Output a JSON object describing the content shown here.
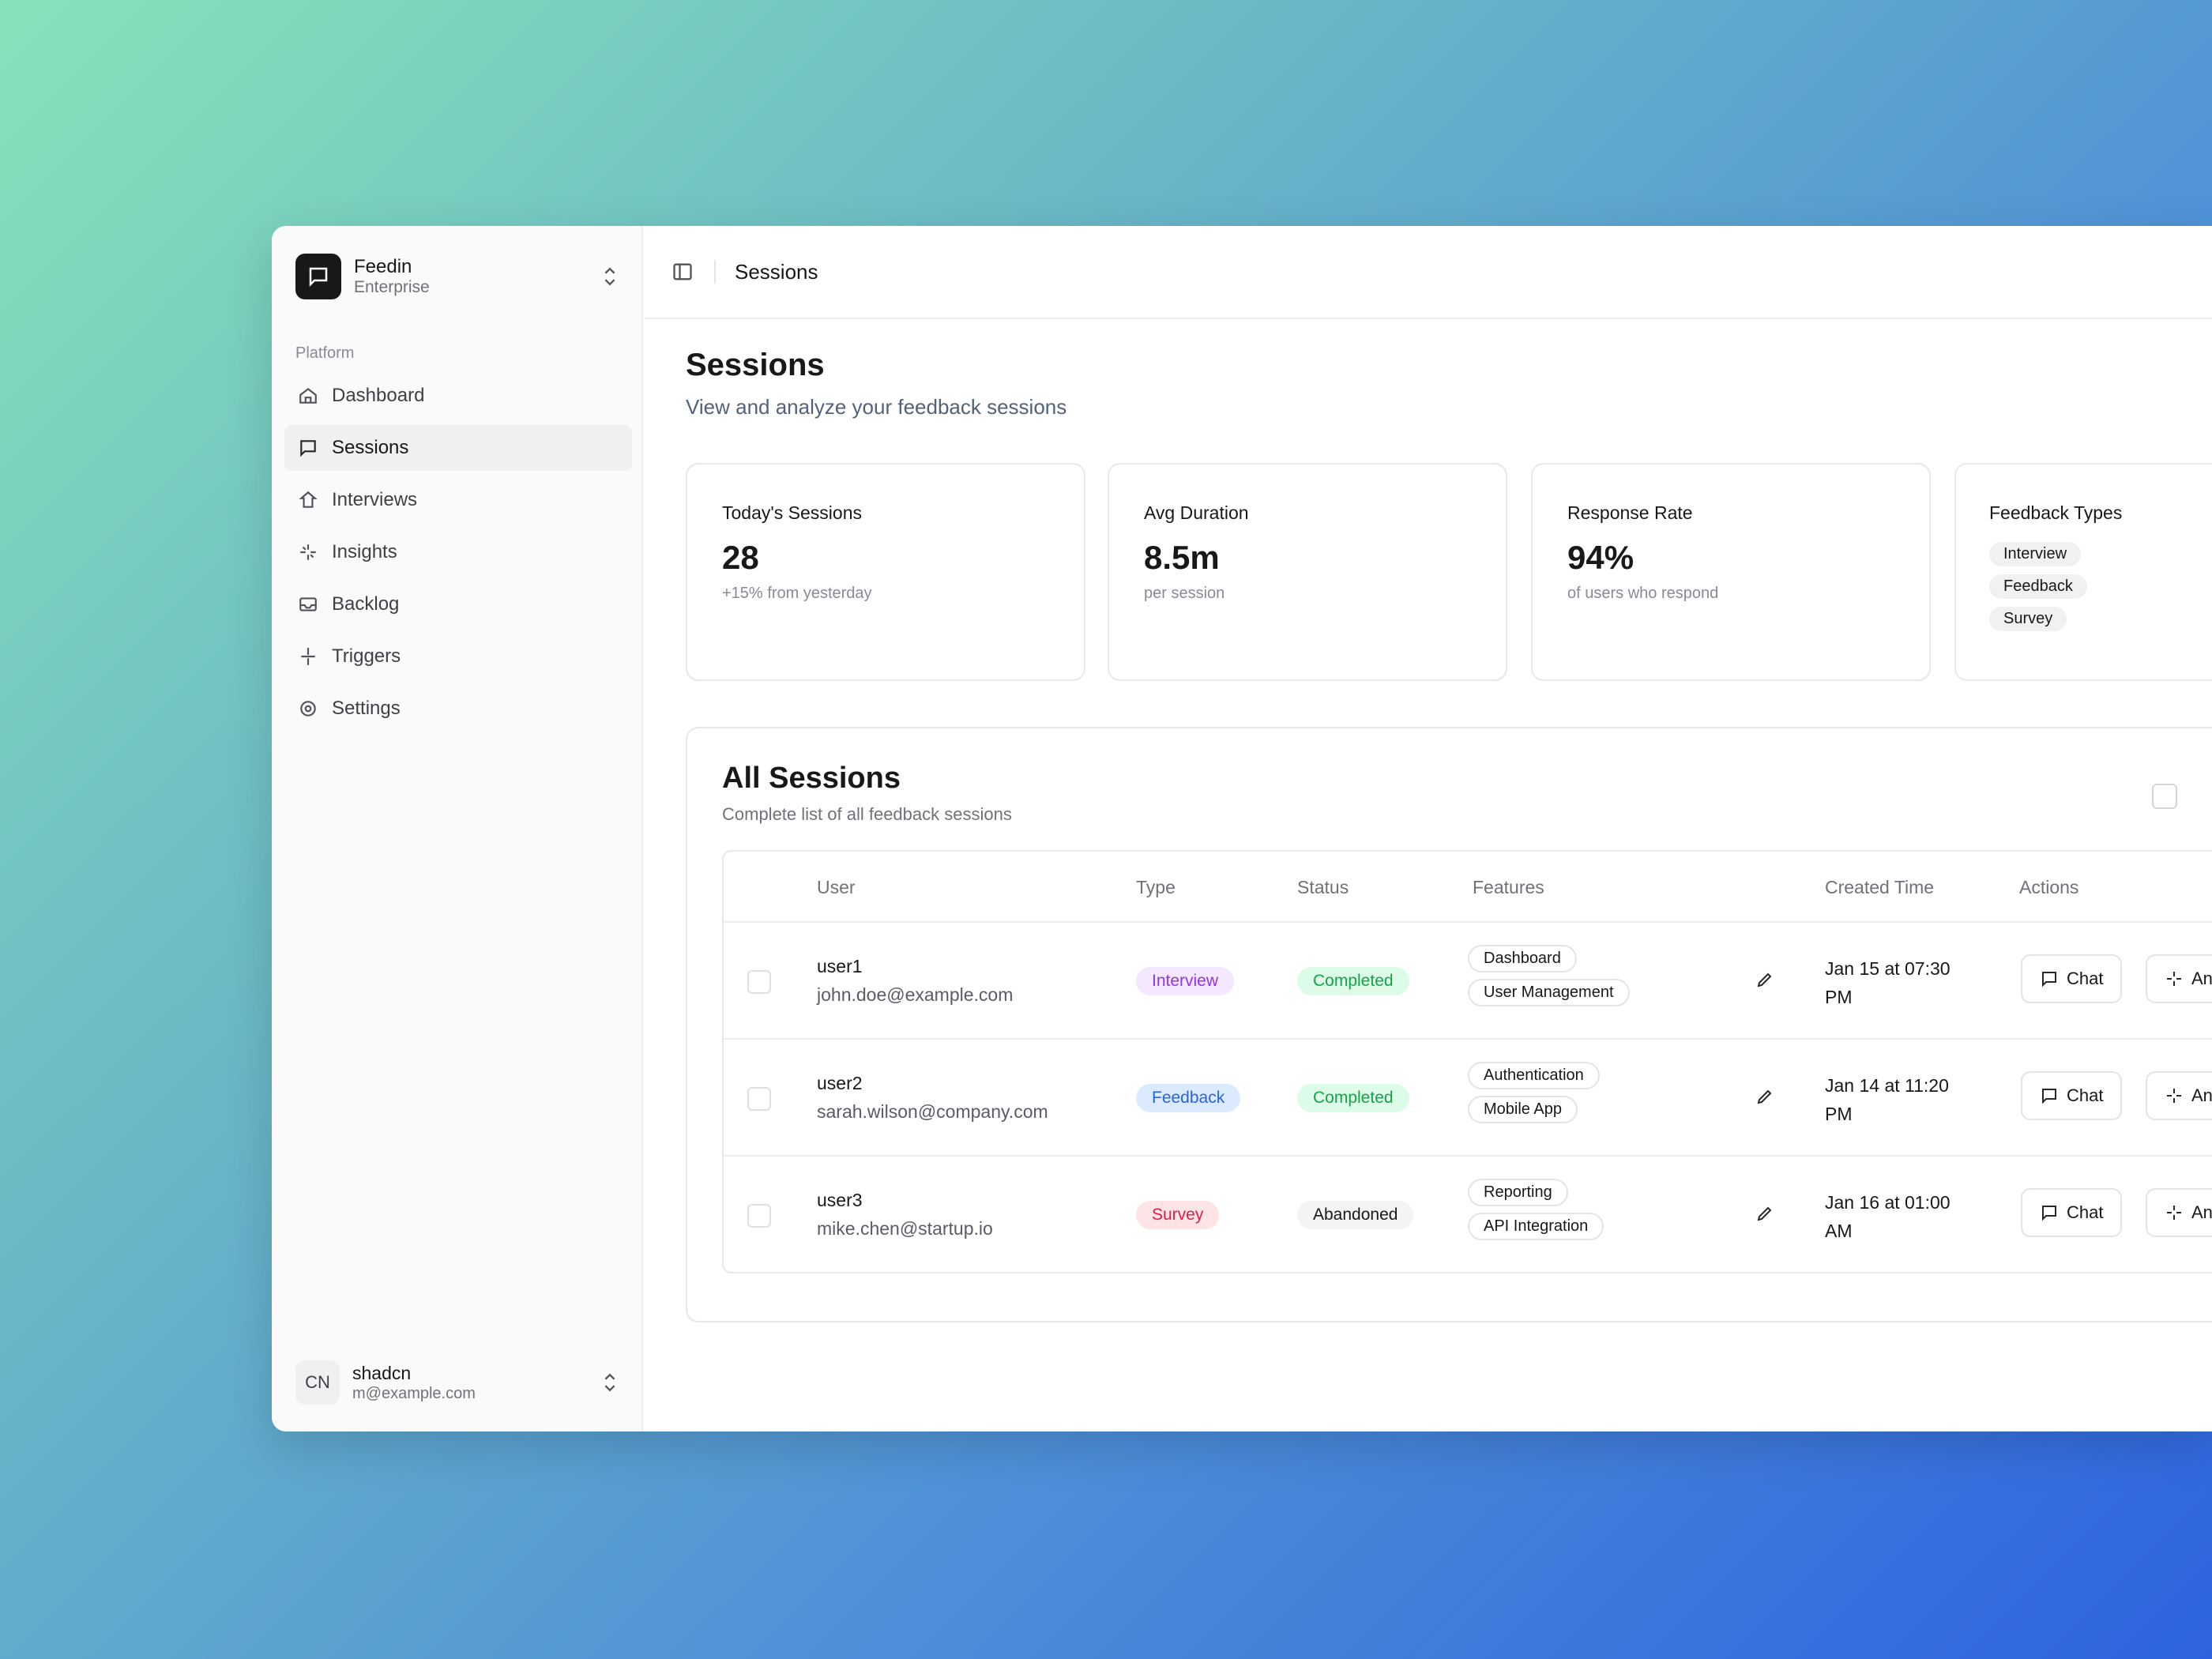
{
  "org": {
    "name": "Feedin",
    "plan": "Enterprise"
  },
  "nav": {
    "section_label": "Platform",
    "items": [
      {
        "label": "Dashboard",
        "icon": "home-icon"
      },
      {
        "label": "Sessions",
        "icon": "message-icon"
      },
      {
        "label": "Interviews",
        "icon": "interview-icon"
      },
      {
        "label": "Insights",
        "icon": "sparkle-icon"
      },
      {
        "label": "Backlog",
        "icon": "inbox-icon"
      },
      {
        "label": "Triggers",
        "icon": "zap-icon"
      },
      {
        "label": "Settings",
        "icon": "gear-icon"
      }
    ]
  },
  "user": {
    "initials": "CN",
    "name": "shadcn",
    "email": "m@example.com"
  },
  "topbar": {
    "breadcrumb": "Sessions"
  },
  "page": {
    "title": "Sessions",
    "subtitle": "View and analyze your feedback sessions"
  },
  "cards": {
    "todays": {
      "title": "Today's Sessions",
      "value": "28",
      "note": "+15% from yesterday"
    },
    "duration": {
      "title": "Avg Duration",
      "value": "8.5m",
      "note": "per session"
    },
    "response": {
      "title": "Response Rate",
      "value": "94%",
      "note": "of users who respond"
    },
    "types": {
      "title": "Feedback Types",
      "chips": [
        "Interview",
        "Feedback",
        "Survey"
      ]
    }
  },
  "panel": {
    "title": "All Sessions",
    "subtitle": "Complete list of all feedback sessions",
    "headers": {
      "user": "User",
      "type": "Type",
      "status": "Status",
      "features": "Features",
      "created": "Created Time",
      "actions": "Actions"
    },
    "rows": [
      {
        "user": "user1",
        "email": "john.doe@example.com",
        "type": "Interview",
        "status": "Completed",
        "features": [
          "Dashboard",
          "User Management"
        ],
        "created": "Jan 15 at 07:30 PM",
        "chat": "Chat",
        "analyze": "An"
      },
      {
        "user": "user2",
        "email": "sarah.wilson@company.com",
        "type": "Feedback",
        "status": "Completed",
        "features": [
          "Authentication",
          "Mobile App"
        ],
        "created": "Jan 14 at 11:20 PM",
        "chat": "Chat",
        "analyze": "An"
      },
      {
        "user": "user3",
        "email": "mike.chen@startup.io",
        "type": "Survey",
        "status": "Abandoned",
        "features": [
          "Reporting",
          "API Integration"
        ],
        "created": "Jan 16 at 01:00 AM",
        "chat": "Chat",
        "analyze": "An"
      }
    ]
  },
  "colors": {
    "interview_bg": "#f3e8ff",
    "interview_fg": "#9333ea",
    "feedback_bg": "#dbeafe",
    "feedback_fg": "#2563eb",
    "survey_bg": "#ffe4e6",
    "survey_fg": "#e11d48",
    "completed_bg": "#dcfce7",
    "completed_fg": "#16a34a",
    "abandoned_bg": "#f4f4f5",
    "abandoned_fg": "#18181b"
  }
}
